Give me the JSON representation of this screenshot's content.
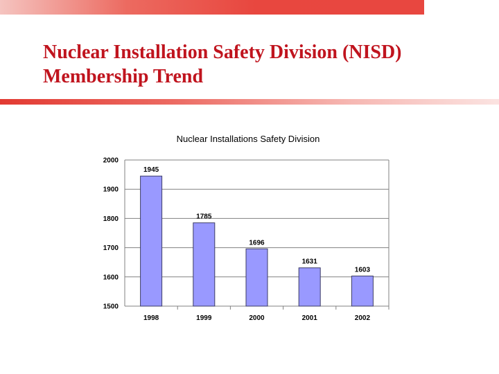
{
  "slide": {
    "title_line1": "Nuclear Installation Safety Division (NISD)",
    "title_line2": "Membership Trend"
  },
  "colors": {
    "accent": "#e8473f",
    "title": "#c0141e",
    "bar_fill": "#9999ff",
    "bar_stroke": "#3c3c64",
    "grid": "#808080"
  },
  "chart_data": {
    "type": "bar",
    "title": "Nuclear Installations Safety Division",
    "categories": [
      "1998",
      "1999",
      "2000",
      "2001",
      "2002"
    ],
    "values": [
      1945,
      1785,
      1696,
      1631,
      1603
    ],
    "ylim": [
      1500,
      2000
    ],
    "yticks": [
      "2000",
      "1900",
      "1800",
      "1700",
      "1600",
      "1500"
    ],
    "grid": true,
    "legend": "none",
    "xlabel": "",
    "ylabel": ""
  }
}
